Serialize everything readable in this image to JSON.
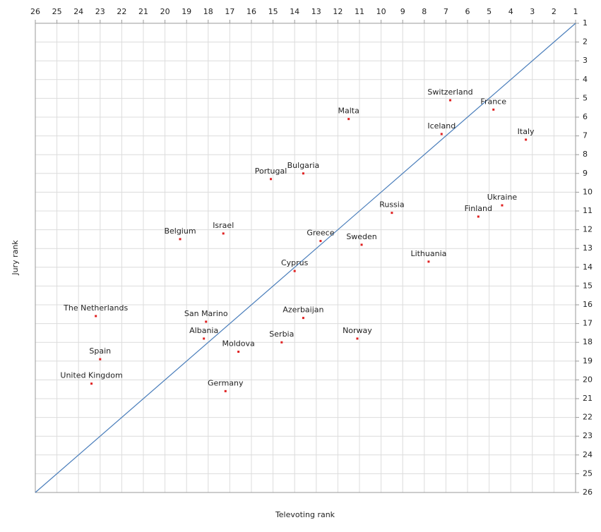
{
  "chart_data": {
    "type": "scatter",
    "xlabel": "Televoting rank",
    "ylabel": "Jury rank",
    "xlim": [
      26,
      1
    ],
    "ylim": [
      26,
      1
    ],
    "xticks": [
      26,
      25,
      24,
      23,
      22,
      21,
      20,
      19,
      18,
      17,
      16,
      15,
      14,
      13,
      12,
      11,
      10,
      9,
      8,
      7,
      6,
      5,
      4,
      3,
      2,
      1
    ],
    "yticks": [
      1,
      2,
      3,
      4,
      5,
      6,
      7,
      8,
      9,
      10,
      11,
      12,
      13,
      14,
      15,
      16,
      17,
      18,
      19,
      20,
      21,
      22,
      23,
      24,
      25,
      26
    ],
    "grid": true,
    "color": "#e02020",
    "diagonal_color": "#4a7ebb",
    "point_labels": [
      "Switzerland",
      "France",
      "Malta",
      "Iceland",
      "Italy",
      "Portugal",
      "Bulgaria",
      "Ukraine",
      "Russia",
      "Finland",
      "Israel",
      "Belgium",
      "Greece",
      "Sweden",
      "Lithuania",
      "Cyprus",
      "The Netherlands",
      "Azerbaijan",
      "San Marino",
      "Norway",
      "Albania",
      "Serbia",
      "Moldova",
      "Spain",
      "United Kingdom",
      "Germany"
    ],
    "x": [
      6.8,
      4.8,
      11.5,
      7.2,
      3.3,
      15.1,
      13.6,
      4.4,
      9.5,
      5.5,
      17.3,
      19.3,
      12.8,
      10.9,
      7.8,
      14.0,
      23.2,
      13.6,
      18.1,
      11.1,
      18.2,
      14.6,
      16.6,
      23.0,
      23.4,
      17.2
    ],
    "values": [
      5.1,
      5.6,
      6.1,
      6.9,
      7.2,
      9.3,
      9.0,
      10.7,
      11.1,
      11.3,
      12.2,
      12.5,
      12.6,
      12.8,
      13.7,
      14.2,
      16.6,
      16.7,
      16.9,
      17.8,
      17.8,
      18.0,
      18.5,
      18.9,
      20.2,
      20.6
    ]
  }
}
